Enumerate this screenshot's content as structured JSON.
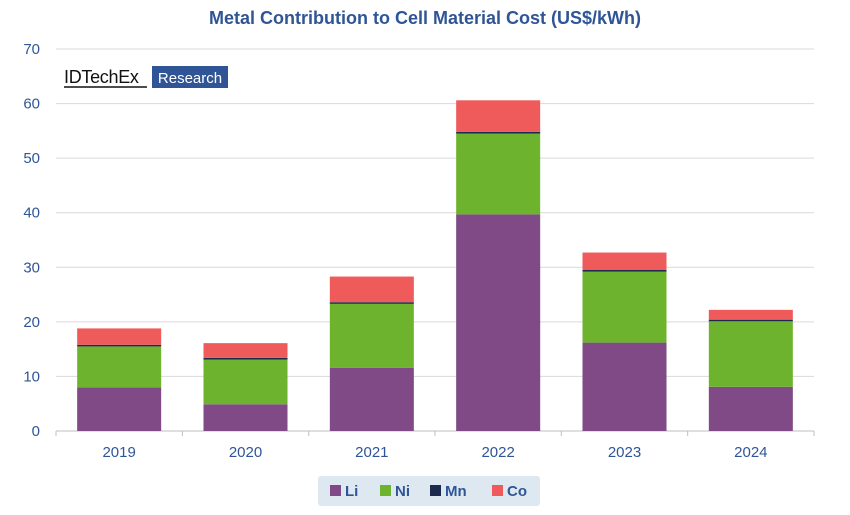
{
  "chart_data": {
    "type": "bar",
    "stacked": true,
    "title": "Metal Contribution to Cell Material Cost (US$/kWh)",
    "categories": [
      "2019",
      "2020",
      "2021",
      "2022",
      "2023",
      "2024"
    ],
    "series": [
      {
        "name": "Li",
        "color": "#7f4a85",
        "values": [
          8.0,
          4.9,
          11.6,
          39.7,
          16.2,
          8.1
        ]
      },
      {
        "name": "Ni",
        "color": "#6eb32d",
        "values": [
          7.5,
          8.2,
          11.7,
          14.8,
          13.0,
          12.0
        ]
      },
      {
        "name": "Mn",
        "color": "#1c2a4e",
        "values": [
          0.3,
          0.3,
          0.3,
          0.3,
          0.3,
          0.3
        ]
      },
      {
        "name": "Co",
        "color": "#ef5b5b",
        "values": [
          3.0,
          2.7,
          4.7,
          5.8,
          3.2,
          1.8
        ]
      }
    ],
    "ylim": [
      0,
      70
    ],
    "yticks": [
      "0",
      "10",
      "20",
      "30",
      "40",
      "50",
      "60",
      "70"
    ],
    "grid": true,
    "legend_position": "bottom"
  },
  "logo": {
    "left": "IDTechEx",
    "right": "Research",
    "accent_color": "#2f5597"
  }
}
